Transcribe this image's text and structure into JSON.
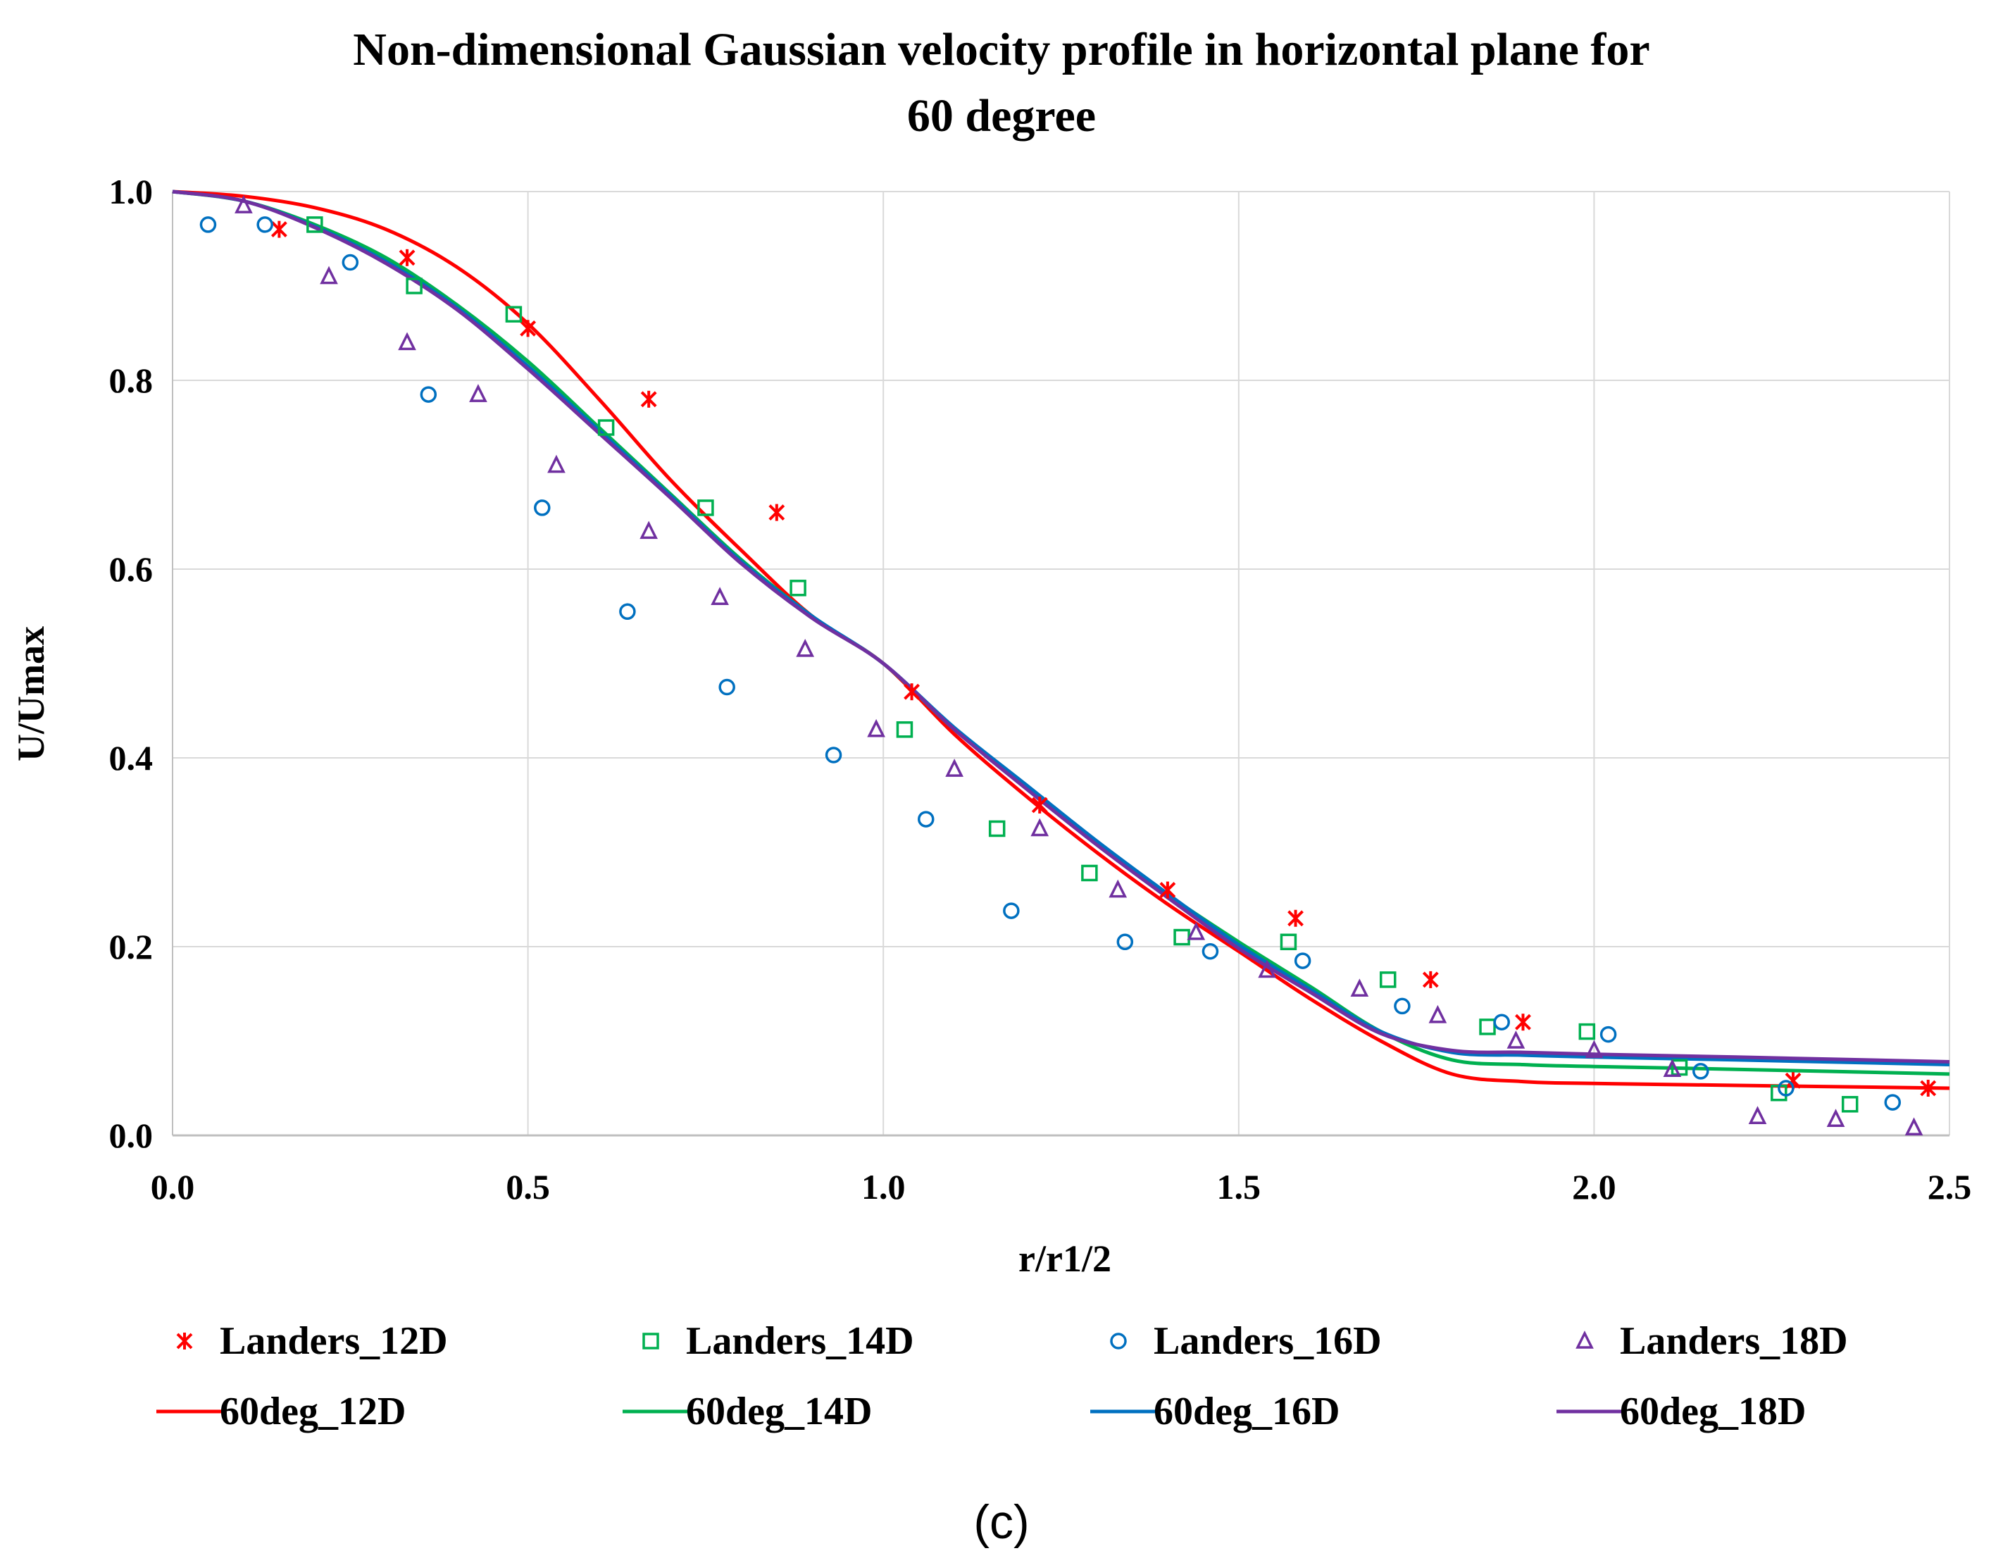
{
  "chart_data": {
    "type": "scatter",
    "title_lines": [
      "Non-dimensional  Gaussian velocity profile in horizontal plane for",
      "60 degree"
    ],
    "xlabel": "r/r1/2",
    "ylabel": "U/Umax",
    "xlim": [
      0,
      2.5
    ],
    "ylim": [
      0,
      1.0
    ],
    "x_ticks": [
      "0.0",
      "0.5",
      "1.0",
      "1.5",
      "2.0",
      "2.5"
    ],
    "y_ticks": [
      "0.0",
      "0.2",
      "0.4",
      "0.6",
      "0.8",
      "1.0"
    ],
    "grid": true,
    "caption": "(c)",
    "scatter_series": [
      {
        "name": "Landers_12D",
        "marker": "cross",
        "color": "#ff0000",
        "points": [
          [
            0.15,
            0.96
          ],
          [
            0.33,
            0.93
          ],
          [
            0.5,
            0.855
          ],
          [
            0.67,
            0.78
          ],
          [
            0.85,
            0.66
          ],
          [
            1.04,
            0.47
          ],
          [
            1.22,
            0.35
          ],
          [
            1.4,
            0.26
          ],
          [
            1.58,
            0.23
          ],
          [
            1.77,
            0.165
          ],
          [
            1.9,
            0.12
          ],
          [
            2.28,
            0.058
          ],
          [
            2.47,
            0.05
          ]
        ]
      },
      {
        "name": "Landers_14D",
        "marker": "square",
        "color": "#00b050",
        "points": [
          [
            0.2,
            0.965
          ],
          [
            0.34,
            0.9
          ],
          [
            0.48,
            0.87
          ],
          [
            0.61,
            0.75
          ],
          [
            0.75,
            0.665
          ],
          [
            0.88,
            0.58
          ],
          [
            1.03,
            0.43
          ],
          [
            1.16,
            0.325
          ],
          [
            1.29,
            0.278
          ],
          [
            1.42,
            0.21
          ],
          [
            1.57,
            0.205
          ],
          [
            1.71,
            0.165
          ],
          [
            1.85,
            0.115
          ],
          [
            1.99,
            0.11
          ],
          [
            2.12,
            0.072
          ],
          [
            2.26,
            0.045
          ],
          [
            2.36,
            0.033
          ]
        ]
      },
      {
        "name": "Landers_16D",
        "marker": "circle",
        "color": "#0070c0",
        "points": [
          [
            0.05,
            0.965
          ],
          [
            0.13,
            0.965
          ],
          [
            0.25,
            0.925
          ],
          [
            0.36,
            0.785
          ],
          [
            0.52,
            0.665
          ],
          [
            0.64,
            0.555
          ],
          [
            0.78,
            0.475
          ],
          [
            0.93,
            0.403
          ],
          [
            1.06,
            0.335
          ],
          [
            1.18,
            0.238
          ],
          [
            1.34,
            0.205
          ],
          [
            1.46,
            0.195
          ],
          [
            1.59,
            0.185
          ],
          [
            1.73,
            0.137
          ],
          [
            1.87,
            0.12
          ],
          [
            2.02,
            0.107
          ],
          [
            2.15,
            0.068
          ],
          [
            2.27,
            0.05
          ],
          [
            2.42,
            0.035
          ]
        ]
      },
      {
        "name": "Landers_18D",
        "marker": "triangle",
        "color": "#7030a0",
        "points": [
          [
            0.1,
            0.985
          ],
          [
            0.22,
            0.91
          ],
          [
            0.33,
            0.84
          ],
          [
            0.43,
            0.785
          ],
          [
            0.54,
            0.71
          ],
          [
            0.67,
            0.64
          ],
          [
            0.77,
            0.57
          ],
          [
            0.89,
            0.515
          ],
          [
            0.99,
            0.43
          ],
          [
            1.1,
            0.388
          ],
          [
            1.22,
            0.325
          ],
          [
            1.33,
            0.26
          ],
          [
            1.44,
            0.215
          ],
          [
            1.54,
            0.175
          ],
          [
            1.67,
            0.155
          ],
          [
            1.78,
            0.127
          ],
          [
            1.89,
            0.1
          ],
          [
            2.0,
            0.09
          ],
          [
            2.11,
            0.07
          ],
          [
            2.23,
            0.02
          ],
          [
            2.34,
            0.017
          ],
          [
            2.45,
            0.008
          ]
        ]
      }
    ],
    "line_series": [
      {
        "name": "60deg_12D",
        "color": "#ff0000",
        "points": [
          [
            0.0,
            1.0
          ],
          [
            0.1,
            0.995
          ],
          [
            0.2,
            0.983
          ],
          [
            0.3,
            0.96
          ],
          [
            0.4,
            0.92
          ],
          [
            0.5,
            0.86
          ],
          [
            0.6,
            0.78
          ],
          [
            0.7,
            0.695
          ],
          [
            0.8,
            0.62
          ],
          [
            0.9,
            0.55
          ],
          [
            1.0,
            0.5
          ],
          [
            1.1,
            0.425
          ],
          [
            1.2,
            0.36
          ],
          [
            1.3,
            0.3
          ],
          [
            1.4,
            0.245
          ],
          [
            1.5,
            0.195
          ],
          [
            1.6,
            0.145
          ],
          [
            1.7,
            0.1
          ],
          [
            1.8,
            0.065
          ],
          [
            1.9,
            0.057
          ],
          [
            2.0,
            0.055
          ],
          [
            2.2,
            0.053
          ],
          [
            2.5,
            0.05
          ]
        ]
      },
      {
        "name": "60deg_14D",
        "color": "#00b050",
        "points": [
          [
            0.0,
            1.0
          ],
          [
            0.1,
            0.99
          ],
          [
            0.2,
            0.965
          ],
          [
            0.3,
            0.93
          ],
          [
            0.4,
            0.88
          ],
          [
            0.5,
            0.82
          ],
          [
            0.6,
            0.75
          ],
          [
            0.7,
            0.68
          ],
          [
            0.8,
            0.61
          ],
          [
            0.9,
            0.55
          ],
          [
            1.0,
            0.5
          ],
          [
            1.1,
            0.43
          ],
          [
            1.2,
            0.37
          ],
          [
            1.3,
            0.31
          ],
          [
            1.4,
            0.255
          ],
          [
            1.5,
            0.205
          ],
          [
            1.6,
            0.158
          ],
          [
            1.7,
            0.11
          ],
          [
            1.8,
            0.08
          ],
          [
            1.9,
            0.075
          ],
          [
            2.0,
            0.073
          ],
          [
            2.2,
            0.07
          ],
          [
            2.5,
            0.065
          ]
        ]
      },
      {
        "name": "60deg_16D",
        "color": "#0070c0",
        "points": [
          [
            0.0,
            1.0
          ],
          [
            0.1,
            0.99
          ],
          [
            0.2,
            0.963
          ],
          [
            0.3,
            0.926
          ],
          [
            0.4,
            0.877
          ],
          [
            0.5,
            0.815
          ],
          [
            0.6,
            0.747
          ],
          [
            0.7,
            0.678
          ],
          [
            0.8,
            0.608
          ],
          [
            0.9,
            0.55
          ],
          [
            1.0,
            0.5
          ],
          [
            1.1,
            0.432
          ],
          [
            1.2,
            0.372
          ],
          [
            1.3,
            0.312
          ],
          [
            1.4,
            0.256
          ],
          [
            1.5,
            0.202
          ],
          [
            1.6,
            0.155
          ],
          [
            1.7,
            0.11
          ],
          [
            1.8,
            0.088
          ],
          [
            1.9,
            0.085
          ],
          [
            2.0,
            0.083
          ],
          [
            2.2,
            0.08
          ],
          [
            2.5,
            0.075
          ]
        ]
      },
      {
        "name": "60deg_18D",
        "color": "#7030a0",
        "points": [
          [
            0.0,
            1.0
          ],
          [
            0.1,
            0.99
          ],
          [
            0.2,
            0.962
          ],
          [
            0.3,
            0.924
          ],
          [
            0.4,
            0.875
          ],
          [
            0.5,
            0.812
          ],
          [
            0.6,
            0.744
          ],
          [
            0.7,
            0.676
          ],
          [
            0.8,
            0.606
          ],
          [
            0.9,
            0.548
          ],
          [
            1.0,
            0.5
          ],
          [
            1.1,
            0.43
          ],
          [
            1.2,
            0.368
          ],
          [
            1.3,
            0.308
          ],
          [
            1.4,
            0.252
          ],
          [
            1.5,
            0.198
          ],
          [
            1.6,
            0.152
          ],
          [
            1.7,
            0.108
          ],
          [
            1.8,
            0.09
          ],
          [
            1.9,
            0.088
          ],
          [
            2.0,
            0.086
          ],
          [
            2.2,
            0.083
          ],
          [
            2.5,
            0.078
          ]
        ]
      }
    ],
    "legend": {
      "position": "bottom",
      "rows": [
        [
          {
            "label": "Landers_12D",
            "kind": "marker",
            "marker": "cross",
            "color": "#ff0000"
          },
          {
            "label": "Landers_14D",
            "kind": "marker",
            "marker": "square",
            "color": "#00b050"
          },
          {
            "label": "Landers_16D",
            "kind": "marker",
            "marker": "circle",
            "color": "#0070c0"
          },
          {
            "label": "Landers_18D",
            "kind": "marker",
            "marker": "triangle",
            "color": "#7030a0"
          }
        ],
        [
          {
            "label": "60deg_12D",
            "kind": "line",
            "color": "#ff0000"
          },
          {
            "label": "60deg_14D",
            "kind": "line",
            "color": "#00b050"
          },
          {
            "label": "60deg_16D",
            "kind": "line",
            "color": "#0070c0"
          },
          {
            "label": "60deg_18D",
            "kind": "line",
            "color": "#7030a0"
          }
        ]
      ]
    }
  }
}
